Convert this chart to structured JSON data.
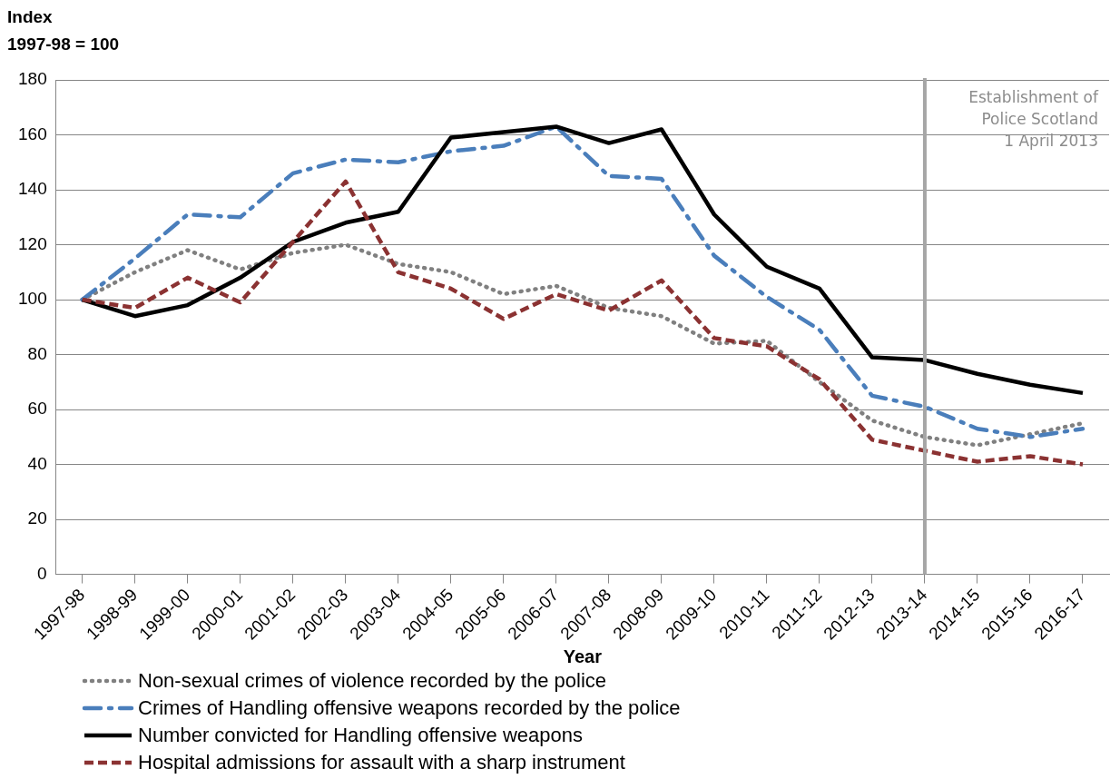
{
  "chart_data": {
    "type": "line",
    "ylabel": "Index\n1997-98 = 100",
    "xlabel": "Year",
    "categories": [
      "1997-98",
      "1998-99",
      "1999-00",
      "2000-01",
      "2001-02",
      "2002-03",
      "2003-04",
      "2004-05",
      "2005-06",
      "2006-07",
      "2007-08",
      "2008-09",
      "2009-10",
      "2010-11",
      "2011-12",
      "2012-13",
      "2013-14",
      "2014-15",
      "2015-16",
      "2016-17"
    ],
    "series": [
      {
        "name": "Non-sexual crimes of violence recorded by the police",
        "color": "#808080",
        "line_style": "dotted",
        "values": [
          100,
          110,
          118,
          111,
          117,
          120,
          113,
          110,
          102,
          105,
          97,
          94,
          84,
          85,
          70,
          56,
          50,
          47,
          51,
          55
        ]
      },
      {
        "name": "Crimes of Handling offensive weapons recorded by the police",
        "color": "#4a7ebb",
        "line_style": "dashdot",
        "values": [
          100,
          115,
          131,
          130,
          146,
          151,
          150,
          154,
          156,
          163,
          145,
          144,
          116,
          101,
          89,
          65,
          61,
          53,
          50,
          53
        ]
      },
      {
        "name": "Number convicted for Handling offensive weapons",
        "color": "#000000",
        "line_style": "solid",
        "values": [
          100,
          94,
          98,
          108,
          121,
          128,
          132,
          159,
          161,
          163,
          157,
          162,
          131,
          112,
          104,
          79,
          78,
          73,
          69,
          66
        ]
      },
      {
        "name": "Hospital admissions for assault with a sharp instrument",
        "color": "#8b3232",
        "line_style": "dashed",
        "values": [
          100,
          97,
          108,
          99,
          121,
          143,
          110,
          104,
          93,
          102,
          96,
          107,
          86,
          83,
          71,
          49,
          45,
          41,
          43,
          40
        ]
      }
    ],
    "ylim": [
      0,
      180
    ],
    "yticks": [
      0,
      20,
      40,
      60,
      80,
      100,
      120,
      140,
      160,
      180
    ],
    "grid": "y",
    "marker": "none",
    "legend": "bottom",
    "ref_lines": [
      {
        "axis": "x",
        "value": "2013-14",
        "label": "Establishment of\nPolice Scotland\n1 April 2013",
        "color": "#a6a6a6"
      }
    ]
  }
}
